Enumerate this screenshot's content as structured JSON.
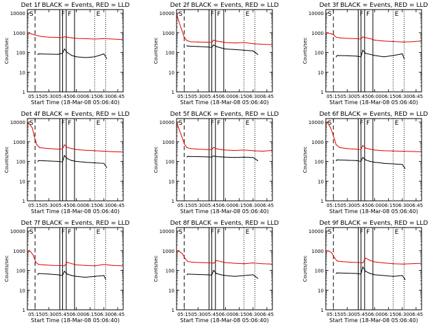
{
  "figure": {
    "xlabel": "Start Time (18-Mar-08 05:06:40)",
    "ylabel": "Counts/sec",
    "xticks": [
      "05:15",
      "05:30",
      "05:45",
      "06:00",
      "06:15",
      "06:30",
      "06:45"
    ],
    "yticks": [
      "1",
      "10",
      "100",
      "1000",
      "10000"
    ],
    "marks": {
      "s": "S",
      "f": "F",
      "e": "E"
    },
    "colors": {
      "events": "#000000",
      "lld": "#e00000"
    }
  },
  "chart_data": [
    {
      "type": "line",
      "title": "Det 1f BLACK = Events, RED = LLD",
      "scale": "log",
      "xlim": [
        "05:06:40",
        "06:51"
      ],
      "ylim": [
        1,
        15000
      ],
      "series": [
        {
          "name": "LLD",
          "color": "#e00000",
          "x": [
            "05:07",
            "05:10",
            "05:14",
            "05:18",
            "05:22",
            "05:30",
            "05:40",
            "05:45",
            "05:47",
            "05:50",
            "05:55",
            "06:00",
            "06:10",
            "06:20",
            "06:30",
            "06:40",
            "06:50"
          ],
          "values": [
            1000,
            900,
            800,
            700,
            650,
            600,
            580,
            560,
            620,
            600,
            550,
            520,
            500,
            480,
            500,
            480,
            450
          ]
        },
        {
          "name": "Events",
          "color": "#000000",
          "x": [
            "05:18",
            "05:19",
            "05:30",
            "05:40",
            "05:45",
            "05:47",
            "05:50",
            "05:55",
            "06:00",
            "06:10",
            "06:20",
            "06:30",
            "06:33"
          ],
          "values": [
            80,
            85,
            82,
            80,
            90,
            150,
            100,
            70,
            60,
            55,
            60,
            85,
            50
          ]
        }
      ]
    },
    {
      "type": "line",
      "title": "Det 2f BLACK = Events, RED = LLD",
      "scale": "log",
      "xlim": [
        "05:06:40",
        "06:51"
      ],
      "ylim": [
        1,
        15000
      ],
      "series": [
        {
          "name": "LLD",
          "color": "#e00000",
          "x": [
            "05:07",
            "05:09",
            "05:12",
            "05:15",
            "05:18",
            "05:22",
            "05:30",
            "05:40",
            "05:45",
            "05:47",
            "05:50",
            "05:55",
            "06:00",
            "06:10",
            "06:20",
            "06:30",
            "06:40",
            "06:50"
          ],
          "values": [
            8000,
            4000,
            1500,
            600,
            400,
            350,
            340,
            330,
            320,
            420,
            380,
            350,
            320,
            300,
            320,
            280,
            260,
            250
          ]
        },
        {
          "name": "Events",
          "color": "#000000",
          "x": [
            "05:18",
            "05:19",
            "05:30",
            "05:40",
            "05:45",
            "05:47",
            "05:50",
            "05:55",
            "06:00",
            "06:10",
            "06:20",
            "06:30",
            "06:35"
          ],
          "values": [
            220,
            210,
            200,
            190,
            180,
            240,
            200,
            170,
            150,
            140,
            130,
            120,
            80
          ]
        }
      ]
    },
    {
      "type": "line",
      "title": "Det 3f BLACK = Events, RED = LLD",
      "scale": "log",
      "xlim": [
        "05:06:40",
        "06:51"
      ],
      "ylim": [
        1,
        15000
      ],
      "series": [
        {
          "name": "LLD",
          "color": "#e00000",
          "x": [
            "05:07",
            "05:09",
            "05:12",
            "05:15",
            "05:18",
            "05:22",
            "05:30",
            "05:40",
            "05:45",
            "05:47",
            "05:50",
            "05:55",
            "06:00",
            "06:10",
            "06:20",
            "06:30",
            "06:40",
            "06:50"
          ],
          "values": [
            1000,
            950,
            900,
            800,
            600,
            550,
            520,
            500,
            480,
            620,
            560,
            500,
            420,
            380,
            360,
            340,
            350,
            380
          ]
        },
        {
          "name": "Events",
          "color": "#000000",
          "x": [
            "05:18",
            "05:19",
            "05:30",
            "05:40",
            "05:45",
            "05:47",
            "05:50",
            "05:55",
            "06:00",
            "06:10",
            "06:20",
            "06:30",
            "06:32"
          ],
          "values": [
            60,
            70,
            68,
            65,
            60,
            130,
            90,
            80,
            70,
            60,
            70,
            85,
            50
          ]
        }
      ]
    },
    {
      "type": "line",
      "title": "Det 4f BLACK = Events, RED = LLD",
      "scale": "log",
      "xlim": [
        "05:06:40",
        "06:51"
      ],
      "ylim": [
        1,
        15000
      ],
      "series": [
        {
          "name": "LLD",
          "color": "#e00000",
          "x": [
            "05:07",
            "05:09",
            "05:12",
            "05:14",
            "05:17",
            "05:20",
            "05:30",
            "05:40",
            "05:45",
            "05:47",
            "05:50",
            "05:55",
            "06:00",
            "06:10",
            "06:20",
            "06:30",
            "06:40",
            "06:50"
          ],
          "values": [
            9000,
            8000,
            5000,
            2000,
            700,
            500,
            450,
            420,
            430,
            700,
            520,
            450,
            400,
            370,
            350,
            330,
            310,
            300
          ]
        },
        {
          "name": "Events",
          "color": "#000000",
          "x": [
            "05:18",
            "05:19",
            "05:30",
            "05:40",
            "05:45",
            "05:47",
            "05:50",
            "05:55",
            "06:00",
            "06:10",
            "06:20",
            "06:30",
            "06:33"
          ],
          "values": [
            100,
            110,
            105,
            100,
            95,
            200,
            140,
            110,
            100,
            90,
            85,
            80,
            50
          ]
        }
      ]
    },
    {
      "type": "line",
      "title": "Det 5f BLACK = Events, RED = LLD",
      "scale": "log",
      "xlim": [
        "05:06:40",
        "06:51"
      ],
      "ylim": [
        1,
        15000
      ],
      "series": [
        {
          "name": "LLD",
          "color": "#e00000",
          "x": [
            "05:07",
            "05:09",
            "05:12",
            "05:15",
            "05:18",
            "05:22",
            "05:30",
            "05:40",
            "05:45",
            "05:47",
            "05:50",
            "05:55",
            "06:00",
            "06:10",
            "06:20",
            "06:30",
            "06:40",
            "06:50"
          ],
          "values": [
            9000,
            5000,
            2000,
            800,
            500,
            450,
            420,
            400,
            390,
            520,
            440,
            400,
            380,
            360,
            380,
            350,
            330,
            360
          ]
        },
        {
          "name": "Events",
          "color": "#000000",
          "x": [
            "05:18",
            "05:19",
            "05:30",
            "05:40",
            "05:45",
            "05:47",
            "05:50",
            "05:55",
            "06:00",
            "06:10",
            "06:20",
            "06:30",
            "06:35"
          ],
          "values": [
            170,
            180,
            175,
            170,
            165,
            190,
            175,
            170,
            165,
            160,
            165,
            160,
            110
          ]
        }
      ]
    },
    {
      "type": "line",
      "title": "Det 6f BLACK = Events, RED = LLD",
      "scale": "log",
      "xlim": [
        "05:06:40",
        "06:51"
      ],
      "ylim": [
        1,
        15000
      ],
      "series": [
        {
          "name": "LLD",
          "color": "#e00000",
          "x": [
            "05:07",
            "05:09",
            "05:12",
            "05:15",
            "05:18",
            "05:22",
            "05:30",
            "05:40",
            "05:45",
            "05:47",
            "05:50",
            "05:55",
            "06:00",
            "06:10",
            "06:20",
            "06:30",
            "06:40",
            "06:50"
          ],
          "values": [
            10000,
            9000,
            5000,
            2000,
            700,
            500,
            450,
            420,
            400,
            650,
            480,
            420,
            380,
            350,
            340,
            330,
            320,
            310
          ]
        },
        {
          "name": "Events",
          "color": "#000000",
          "x": [
            "05:18",
            "05:19",
            "05:30",
            "05:40",
            "05:45",
            "05:47",
            "05:50",
            "05:55",
            "06:00",
            "06:10",
            "06:20",
            "06:30",
            "06:33"
          ],
          "values": [
            110,
            120,
            115,
            110,
            100,
            160,
            120,
            100,
            90,
            80,
            75,
            70,
            45
          ]
        }
      ]
    },
    {
      "type": "line",
      "title": "Det 7f BLACK = Events, RED = LLD",
      "scale": "log",
      "xlim": [
        "05:06:40",
        "06:51"
      ],
      "ylim": [
        1,
        15000
      ],
      "series": [
        {
          "name": "LLD",
          "color": "#e00000",
          "x": [
            "05:07",
            "05:10",
            "05:13",
            "05:16",
            "05:19",
            "05:25",
            "05:35",
            "05:45",
            "05:47",
            "05:50",
            "05:55",
            "06:00",
            "06:10",
            "06:20",
            "06:30",
            "06:40",
            "06:50"
          ],
          "values": [
            1000,
            900,
            600,
            250,
            200,
            190,
            180,
            175,
            170,
            260,
            220,
            190,
            180,
            170,
            200,
            180,
            170
          ]
        },
        {
          "name": "Events",
          "color": "#000000",
          "x": [
            "05:18",
            "05:19",
            "05:30",
            "05:40",
            "05:45",
            "05:47",
            "05:50",
            "05:55",
            "06:00",
            "06:10",
            "06:20",
            "06:30",
            "06:32"
          ],
          "values": [
            60,
            70,
            65,
            60,
            55,
            90,
            65,
            55,
            50,
            45,
            50,
            55,
            35
          ]
        }
      ]
    },
    {
      "type": "line",
      "title": "Det 8f BLACK = Events, RED = LLD",
      "scale": "log",
      "xlim": [
        "05:06:40",
        "06:51"
      ],
      "ylim": [
        1,
        15000
      ],
      "series": [
        {
          "name": "LLD",
          "color": "#e00000",
          "x": [
            "05:07",
            "05:10",
            "05:13",
            "05:16",
            "05:19",
            "05:25",
            "05:35",
            "05:45",
            "05:47",
            "05:50",
            "05:55",
            "06:00",
            "06:10",
            "06:20",
            "06:30",
            "06:40",
            "06:50"
          ],
          "values": [
            1000,
            900,
            700,
            400,
            280,
            260,
            250,
            240,
            230,
            320,
            280,
            250,
            230,
            220,
            240,
            220,
            210
          ]
        },
        {
          "name": "Events",
          "color": "#000000",
          "x": [
            "05:18",
            "05:19",
            "05:30",
            "05:40",
            "05:45",
            "05:47",
            "05:50",
            "05:55",
            "06:00",
            "06:10",
            "06:20",
            "06:30",
            "06:35"
          ],
          "values": [
            60,
            65,
            62,
            60,
            58,
            100,
            70,
            60,
            55,
            50,
            55,
            60,
            40
          ]
        }
      ]
    },
    {
      "type": "line",
      "title": "Det 9f BLACK = Events, RED = LLD",
      "scale": "log",
      "xlim": [
        "05:06:40",
        "06:51"
      ],
      "ylim": [
        1,
        15000
      ],
      "series": [
        {
          "name": "LLD",
          "color": "#e00000",
          "x": [
            "05:07",
            "05:10",
            "05:13",
            "05:16",
            "05:19",
            "05:25",
            "05:35",
            "05:45",
            "05:47",
            "05:50",
            "05:55",
            "06:00",
            "06:10",
            "06:20",
            "06:30",
            "06:40",
            "06:50"
          ],
          "values": [
            1000,
            950,
            800,
            450,
            300,
            280,
            260,
            250,
            240,
            420,
            320,
            270,
            240,
            220,
            210,
            220,
            230
          ]
        },
        {
          "name": "Events",
          "color": "#000000",
          "x": [
            "05:18",
            "05:19",
            "05:30",
            "05:40",
            "05:45",
            "05:47",
            "05:50",
            "05:55",
            "06:00",
            "06:10",
            "06:20",
            "06:30",
            "06:33"
          ],
          "values": [
            70,
            75,
            72,
            70,
            65,
            150,
            90,
            70,
            60,
            55,
            50,
            55,
            35
          ]
        }
      ]
    }
  ]
}
